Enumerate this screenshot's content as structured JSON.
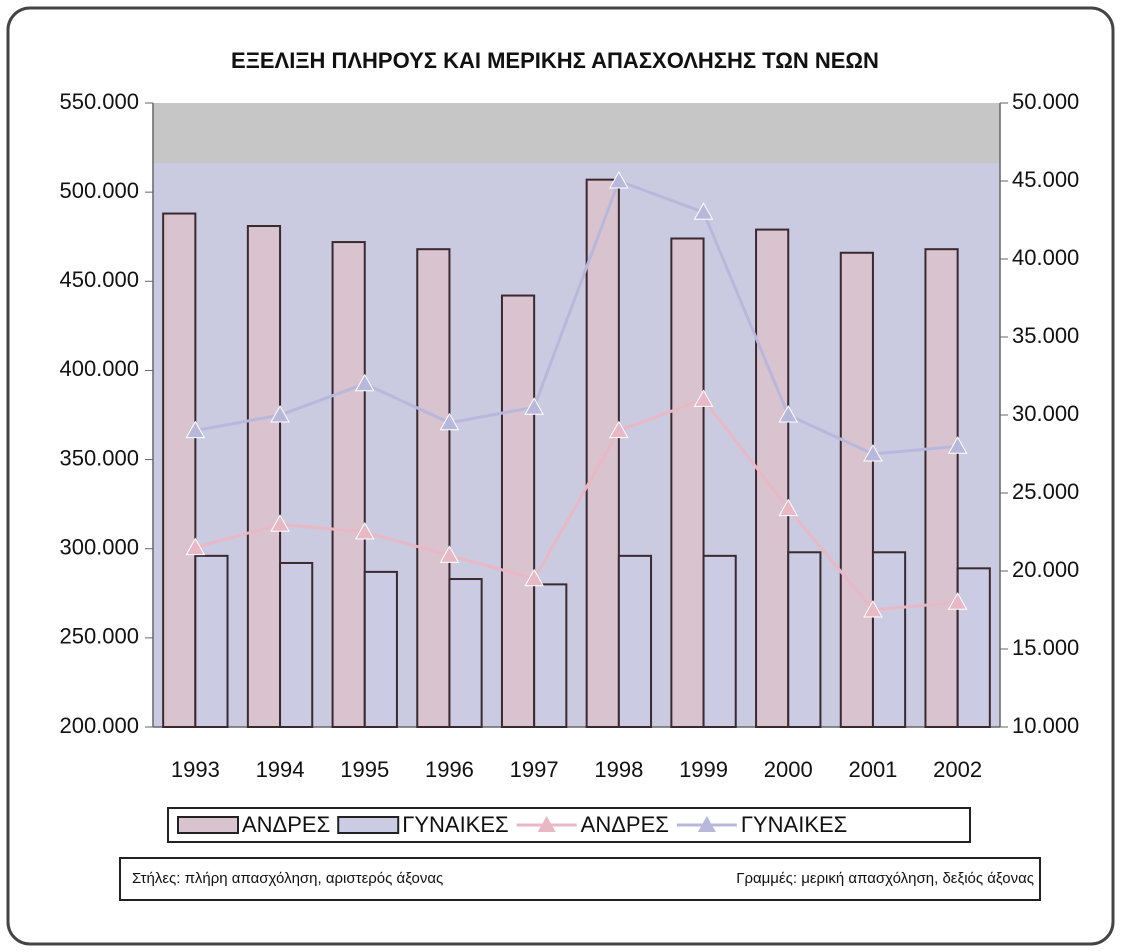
{
  "chart_data": {
    "type": "combo",
    "title": "ΕΞΕΛΙΞΗ ΠΛΗΡΟΥΣ ΚΑΙ ΜΕΡΙΚΗΣ ΑΠΑΣΧΟΛΗΣΗΣ ΤΩΝ ΝΕΩΝ",
    "categories": [
      "1993",
      "1994",
      "1995",
      "1996",
      "1997",
      "1998",
      "1999",
      "2000",
      "2001",
      "2002"
    ],
    "series": [
      {
        "name": "ΑΝΔΡΕΣ",
        "type": "bar",
        "axis": "y",
        "color": "#d9c3cf",
        "values": [
          488000,
          481000,
          472000,
          468000,
          442000,
          507000,
          474000,
          479000,
          466000,
          468000
        ]
      },
      {
        "name": "ΓΥΝΑΙΚΕΣ",
        "type": "bar",
        "axis": "y",
        "color": "#cbcbe3",
        "values": [
          296000,
          292000,
          287000,
          283000,
          280000,
          296000,
          296000,
          298000,
          298000,
          289000
        ]
      },
      {
        "name": "ΑΝΔΡΕΣ",
        "type": "line",
        "axis": "y2",
        "color": "#e8b8c4",
        "values": [
          21500,
          23000,
          22500,
          21000,
          19500,
          29000,
          31000,
          24000,
          17500,
          18000
        ]
      },
      {
        "name": "ΓΥΝΑΙΚΕΣ",
        "type": "line",
        "axis": "y2",
        "color": "#b8b8dc",
        "values": [
          29000,
          30000,
          32000,
          29500,
          30500,
          45000,
          43000,
          30000,
          27500,
          28000
        ]
      }
    ],
    "ylim": [
      200000,
      550000
    ],
    "yticks": [
      {
        "value": 200000,
        "label": "200.000"
      },
      {
        "value": 250000,
        "label": "250.000"
      },
      {
        "value": 300000,
        "label": "300.000"
      },
      {
        "value": 350000,
        "label": "350.000"
      },
      {
        "value": 400000,
        "label": "400.000"
      },
      {
        "value": 450000,
        "label": "450.000"
      },
      {
        "value": 500000,
        "label": "500.000"
      },
      {
        "value": 550000,
        "label": "550.000"
      }
    ],
    "y2lim": [
      10000,
      50000
    ],
    "y2ticks": [
      {
        "value": 10000,
        "label": "10.000"
      },
      {
        "value": 15000,
        "label": "15.000"
      },
      {
        "value": 20000,
        "label": "20.000"
      },
      {
        "value": 25000,
        "label": "25.000"
      },
      {
        "value": 30000,
        "label": "30.000"
      },
      {
        "value": 35000,
        "label": "35.000"
      },
      {
        "value": 40000,
        "label": "40.000"
      },
      {
        "value": 45000,
        "label": "45.000"
      },
      {
        "value": 50000,
        "label": "50.000"
      }
    ],
    "notes": [
      "Στήλες: πλήρη απασχόληση, αριστερός άξονας",
      "Γραμμές: μερική απασχόληση, δεξιός άξονας"
    ]
  }
}
